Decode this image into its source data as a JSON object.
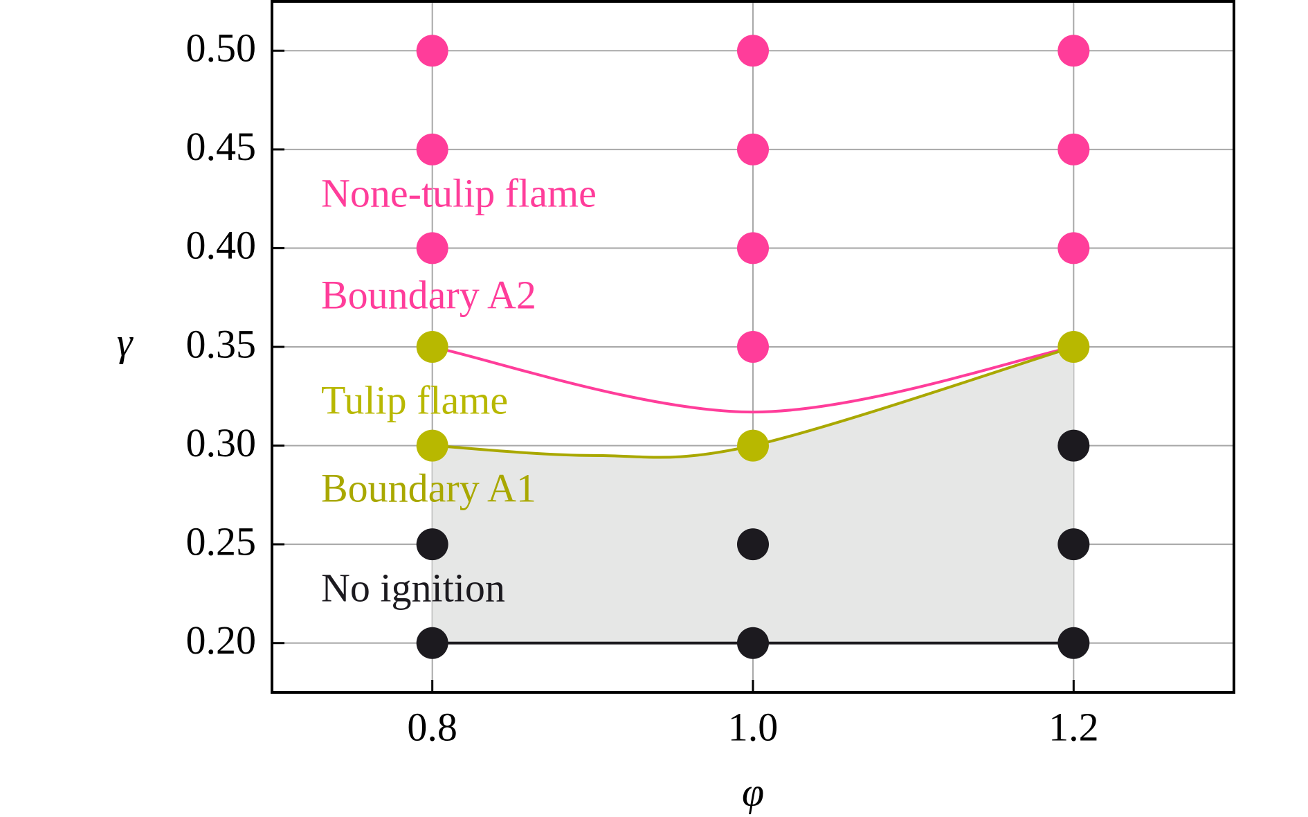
{
  "chart_data": {
    "type": "scatter",
    "x_label": "φ",
    "y_label": "γ",
    "xlim": [
      0.7,
      1.3
    ],
    "ylim": [
      0.175,
      0.525
    ],
    "xticks": [
      0.8,
      {
        "value": 1,
        "label": "1.0"
      },
      1.2
    ],
    "yticks": [
      {
        "value": 0.5,
        "label": "0.50"
      },
      0.45,
      {
        "value": 0.4,
        "label": "0.40"
      },
      0.35,
      {
        "value": 0.3,
        "label": "0.30"
      },
      0.25,
      {
        "value": 0.2,
        "label": "0.20"
      }
    ],
    "grid": true,
    "series": [
      {
        "name": "None-tulip flame",
        "color": "#ff3d9a",
        "x": [
          0.8,
          0.8,
          0.8,
          1,
          1,
          1,
          1,
          1.2,
          1.2,
          1.2
        ],
        "values": [
          0.5,
          0.45,
          0.4,
          0.5,
          0.45,
          0.4,
          0.35,
          0.5,
          0.45,
          0.4
        ]
      },
      {
        "name": "Tulip flame",
        "color": "#b8b800",
        "x": [
          0.8,
          0.8,
          1,
          1.2
        ],
        "values": [
          0.35,
          0.3,
          0.3,
          0.35
        ]
      },
      {
        "name": "No ignition",
        "color": "#1c1a1f",
        "x": [
          0.8,
          0.8,
          1,
          1,
          1.2,
          1.2,
          1.2
        ],
        "values": [
          0.25,
          0.2,
          0.25,
          0.2,
          0.3,
          0.25,
          0.2
        ]
      }
    ],
    "boundaries": [
      {
        "name": "Boundary A2",
        "color": "#ff3d9a",
        "x": [
          0.8,
          1,
          1.2
        ],
        "values": [
          0.35,
          0.317,
          0.35
        ]
      },
      {
        "name": "Boundary A1",
        "color": "#a9a800",
        "x": [
          0.8,
          0.9,
          1,
          1.2
        ],
        "values": [
          0.3,
          0.295,
          0.3,
          0.35
        ]
      }
    ],
    "shade": {
      "color": "#e6e7e6",
      "line_color": "#1c1a1f",
      "x": [
        0.8,
        1.2
      ],
      "lower": [
        0.2,
        0.2
      ]
    }
  }
}
